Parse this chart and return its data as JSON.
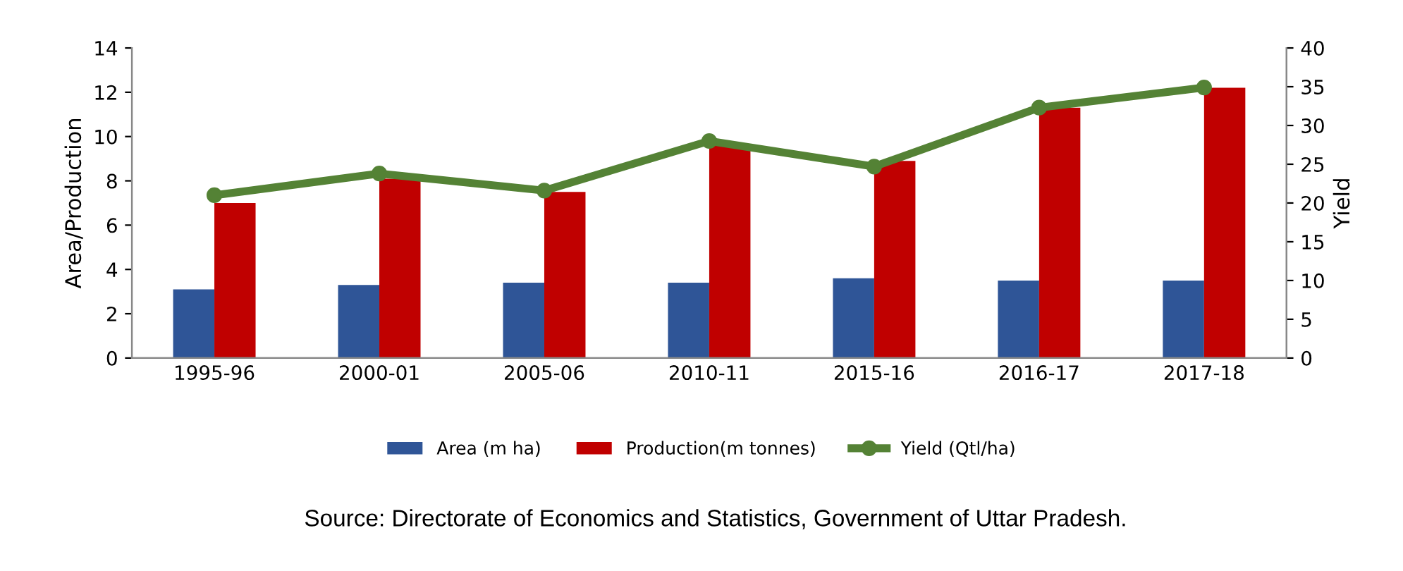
{
  "chart_data": {
    "type": "bar",
    "categories": [
      "1995-96",
      "2000-01",
      "2005-06",
      "2010-11",
      "2015-16",
      "2016-17",
      "2017-18"
    ],
    "series": [
      {
        "name": "Area (m ha)",
        "color": "#2f5597",
        "values": [
          3.1,
          3.3,
          3.4,
          3.4,
          3.6,
          3.5,
          3.5
        ]
      },
      {
        "name": "Production(m tonnes)",
        "color": "#c00000",
        "values": [
          7.0,
          8.1,
          7.5,
          9.6,
          8.9,
          11.3,
          12.2
        ]
      },
      {
        "name": "Yield (Qtl/ha)",
        "type": "line",
        "axis": "y2",
        "color": "#548235",
        "marker": "circle",
        "values": [
          21,
          23.8,
          21.6,
          28,
          24.7,
          32.3,
          34.9
        ]
      }
    ],
    "ylabel": "Area/Production",
    "y2label": "Yield",
    "ylim": [
      0,
      14
    ],
    "yticks": [
      0,
      2,
      4,
      6,
      8,
      10,
      12,
      14
    ],
    "y2lim": [
      0,
      40
    ],
    "y2ticks": [
      0,
      5,
      10,
      15,
      20,
      25,
      30,
      35,
      40
    ],
    "grid": false,
    "legend": "bottom",
    "annotations": [
      "Source: Directorate of Economics and Statistics, Government of Uttar Pradesh."
    ]
  }
}
